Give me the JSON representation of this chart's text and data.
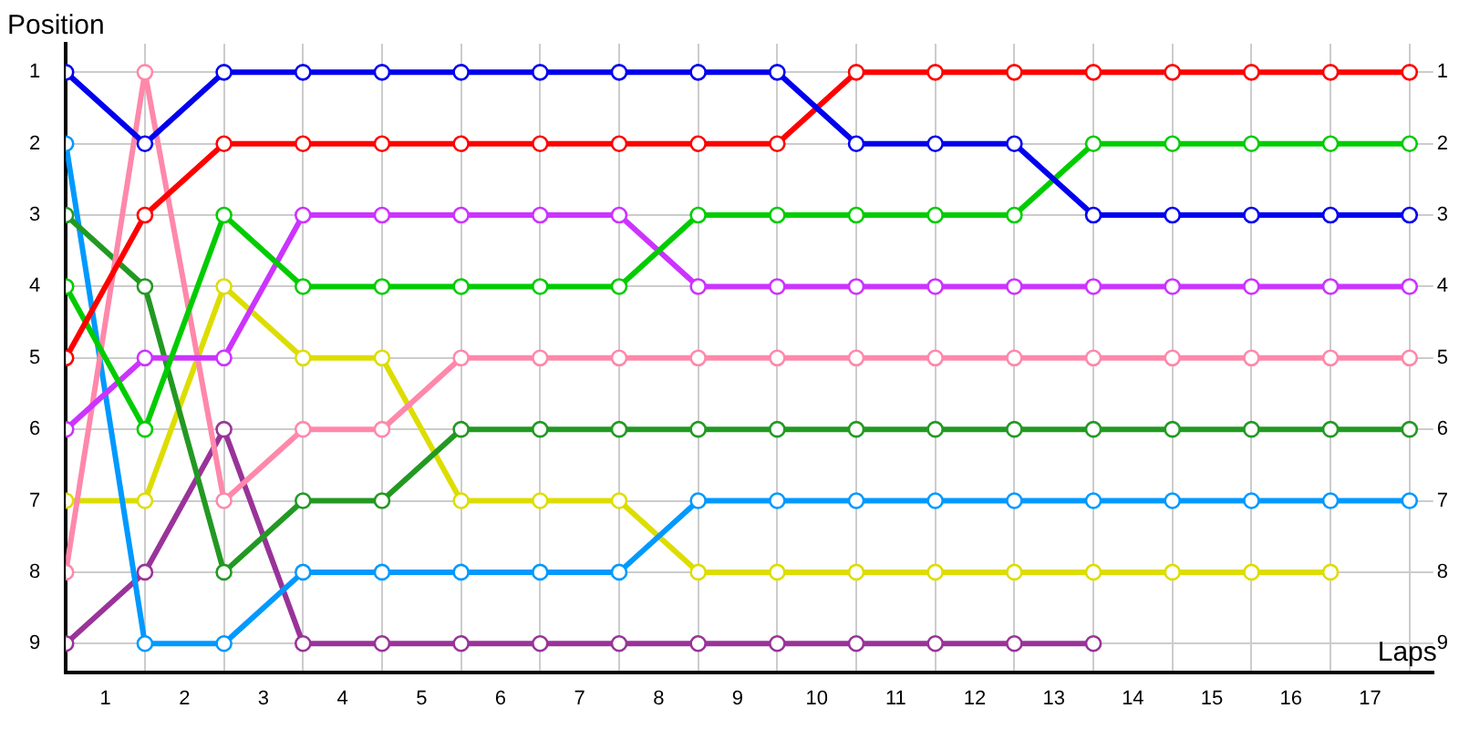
{
  "chart_data": {
    "type": "line",
    "xlabel": "Laps",
    "ylabel": "Position",
    "x": [
      0,
      1,
      2,
      3,
      4,
      5,
      6,
      7,
      8,
      9,
      10,
      11,
      12,
      13,
      14,
      15,
      16,
      17
    ],
    "xlim": [
      0,
      17.3
    ],
    "xticks": [
      {
        "value": 0,
        "label": null
      },
      {
        "value": 0.5,
        "label": "1"
      },
      {
        "value": 1,
        "label": null
      },
      {
        "value": 1.5,
        "label": "2"
      },
      {
        "value": 2,
        "label": null
      },
      {
        "value": 2.5,
        "label": "3"
      },
      {
        "value": 3,
        "label": null
      },
      {
        "value": 3.5,
        "label": "4"
      },
      {
        "value": 4,
        "label": null
      },
      {
        "value": 4.5,
        "label": "5"
      },
      {
        "value": 5,
        "label": null
      },
      {
        "value": 5.5,
        "label": "6"
      },
      {
        "value": 6,
        "label": null
      },
      {
        "value": 6.5,
        "label": "7"
      },
      {
        "value": 7,
        "label": null
      },
      {
        "value": 7.5,
        "label": "8"
      },
      {
        "value": 8,
        "label": null
      },
      {
        "value": 8.5,
        "label": "9"
      },
      {
        "value": 9,
        "label": null
      },
      {
        "value": 9.5,
        "label": "10"
      },
      {
        "value": 10,
        "label": null
      },
      {
        "value": 10.5,
        "label": "11"
      },
      {
        "value": 11,
        "label": null
      },
      {
        "value": 11.5,
        "label": "12"
      },
      {
        "value": 12,
        "label": null
      },
      {
        "value": 12.5,
        "label": "13"
      },
      {
        "value": 13,
        "label": null
      },
      {
        "value": 13.5,
        "label": "14"
      },
      {
        "value": 14,
        "label": null
      },
      {
        "value": 14.5,
        "label": "15"
      },
      {
        "value": 15,
        "label": null
      },
      {
        "value": 15.5,
        "label": "16"
      },
      {
        "value": 16,
        "label": null
      },
      {
        "value": 16.5,
        "label": "17"
      },
      {
        "value": 17,
        "label": null
      }
    ],
    "ylim": [
      9.4,
      0.6
    ],
    "yticks": [
      1,
      2,
      3,
      4,
      5,
      6,
      7,
      8,
      9
    ],
    "y2lim": [
      9.4,
      0.6
    ],
    "y2ticks": [
      1,
      2,
      3,
      4,
      5,
      6,
      7,
      8,
      9
    ],
    "grid": true,
    "legend": false,
    "marker": "circle",
    "line_style": "solid",
    "series": [
      {
        "color": "#0000ee",
        "values": [
          1,
          2,
          1,
          1,
          1,
          1,
          1,
          1,
          1,
          1,
          2,
          2,
          2,
          3,
          3,
          3,
          3,
          3
        ]
      },
      {
        "color": "#ff0000",
        "values": [
          5,
          3,
          2,
          2,
          2,
          2,
          2,
          2,
          2,
          2,
          1,
          1,
          1,
          1,
          1,
          1,
          1,
          1
        ]
      },
      {
        "color": "#00cc00",
        "values": [
          4,
          6,
          3,
          4,
          4,
          4,
          4,
          4,
          3,
          3,
          3,
          3,
          3,
          2,
          2,
          2,
          2,
          2
        ]
      },
      {
        "color": "#cc33ff",
        "values": [
          6,
          5,
          5,
          3,
          3,
          3,
          3,
          3,
          4,
          4,
          4,
          4,
          4,
          4,
          4,
          4,
          4,
          4
        ]
      },
      {
        "color": "#ff88aa",
        "values": [
          8,
          1,
          7,
          6,
          6,
          5,
          5,
          5,
          5,
          5,
          5,
          5,
          5,
          5,
          5,
          5,
          5,
          5
        ]
      },
      {
        "color": "#229922",
        "values": [
          3,
          4,
          8,
          7,
          7,
          6,
          6,
          6,
          6,
          6,
          6,
          6,
          6,
          6,
          6,
          6,
          6,
          6
        ]
      },
      {
        "color": "#0099ff",
        "values": [
          2,
          9,
          9,
          8,
          8,
          8,
          8,
          8,
          7,
          7,
          7,
          7,
          7,
          7,
          7,
          7,
          7,
          7
        ]
      },
      {
        "color": "#dddd00",
        "values": [
          7,
          7,
          4,
          5,
          5,
          7,
          7,
          7,
          8,
          8,
          8,
          8,
          8,
          8,
          8,
          8,
          8,
          null
        ]
      },
      {
        "color": "#993399",
        "values": [
          9,
          8,
          6,
          9,
          9,
          9,
          9,
          9,
          9,
          9,
          9,
          9,
          9,
          9,
          null,
          null,
          null,
          null
        ]
      }
    ]
  }
}
